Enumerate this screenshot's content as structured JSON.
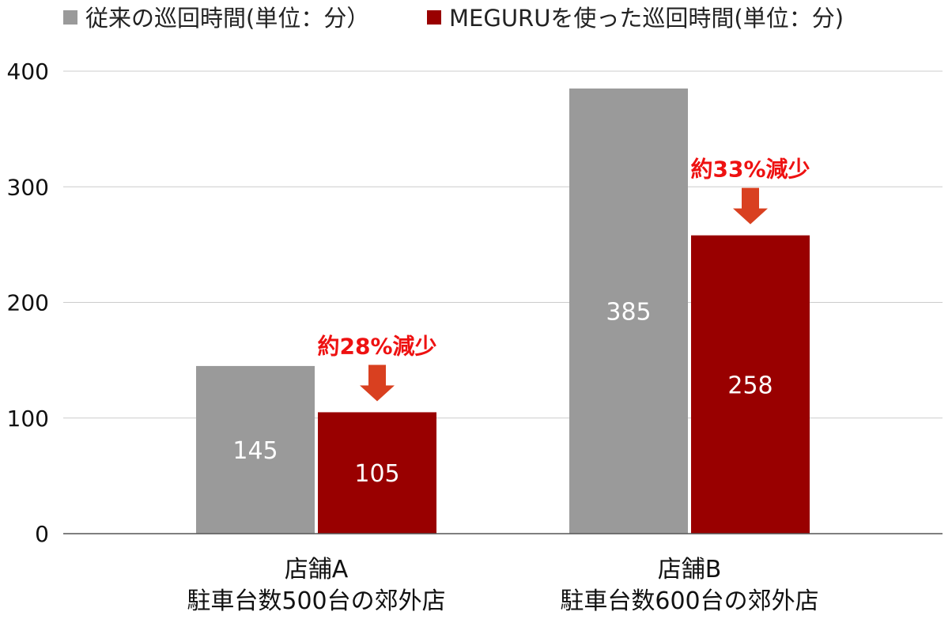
{
  "chart_data": {
    "type": "bar",
    "title": "",
    "xlabel": "",
    "ylabel": "",
    "ylim": [
      0,
      400
    ],
    "yticks": [
      0,
      100,
      200,
      300,
      400
    ],
    "grid": true,
    "legend_position": "top-left",
    "categories": [
      [
        "店舗A",
        "駐車台数500台の郊外店"
      ],
      [
        "店舗B",
        "駐車台数600台の郊外店"
      ]
    ],
    "series": [
      {
        "name": "従来の巡回時間(単位：分）",
        "color": "#9a9a9a",
        "values": [
          145,
          385
        ]
      },
      {
        "name": "MEGURUを使った巡回時間(単位：分)",
        "color": "#990000",
        "values": [
          105,
          258
        ]
      }
    ],
    "annotations": [
      {
        "category_index": 0,
        "text": "約28%減少"
      },
      {
        "category_index": 1,
        "text": "約33%減少"
      }
    ],
    "annotation_color": "#ee1111",
    "arrow_color": "#d94020"
  }
}
